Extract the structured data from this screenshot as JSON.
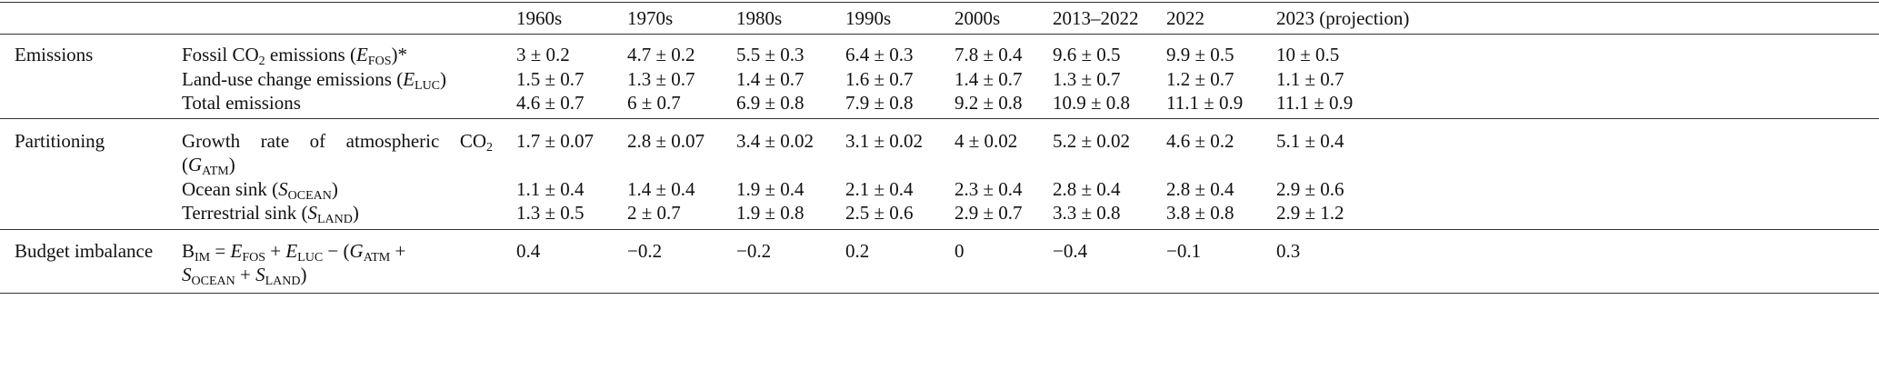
{
  "columns": [
    "1960s",
    "1970s",
    "1980s",
    "1990s",
    "2000s",
    "2013–2022",
    "2022",
    "2023 (projection)"
  ],
  "sections": [
    {
      "name": "Emissions",
      "rows": [
        {
          "label": [
            "Fossil CO",
            "2",
            " emissions (",
            "E",
            "FOS",
            ")*"
          ],
          "values": [
            "3 ± 0.2",
            "4.7 ± 0.2",
            "5.5 ± 0.3",
            "6.4 ± 0.3",
            "7.8 ± 0.4",
            "9.6 ± 0.5",
            "9.9 ± 0.5",
            "10 ± 0.5"
          ]
        },
        {
          "label": [
            "Land-use change emissions (",
            "E",
            "LUC",
            ")"
          ],
          "values": [
            "1.5 ± 0.7",
            "1.3 ± 0.7",
            "1.4 ± 0.7",
            "1.6 ± 0.7",
            "1.4 ± 0.7",
            "1.3 ± 0.7",
            "1.2 ± 0.7",
            "1.1 ± 0.7"
          ]
        },
        {
          "label": [
            "Total emissions"
          ],
          "values": [
            "4.6 ± 0.7",
            "6 ± 0.7",
            "6.9 ± 0.8",
            "7.9 ± 0.8",
            "9.2 ± 0.8",
            "10.9 ± 0.8",
            "11.1 ± 0.9",
            "11.1 ± 0.9"
          ]
        }
      ]
    },
    {
      "name": "Partitioning",
      "rows": [
        {
          "label": [
            "Growth rate of atmospheric CO",
            "2",
            "(",
            "G",
            "ATM",
            ")"
          ],
          "values": [
            "1.7 ± 0.07",
            "2.8 ± 0.07",
            "3.4 ± 0.02",
            "3.1 ± 0.02",
            "4 ± 0.02",
            "5.2 ± 0.02",
            "4.6 ± 0.2",
            "5.1 ± 0.4"
          ]
        },
        {
          "label": [
            "Ocean sink (",
            "S",
            "OCEAN",
            ")"
          ],
          "values": [
            "1.1 ± 0.4",
            "1.4 ± 0.4",
            "1.9 ± 0.4",
            "2.1 ± 0.4",
            "2.3 ± 0.4",
            "2.8 ± 0.4",
            "2.8 ± 0.4",
            "2.9 ± 0.6"
          ]
        },
        {
          "label": [
            "Terrestrial sink (",
            "S",
            "LAND",
            ")"
          ],
          "values": [
            "1.3 ± 0.5",
            "2 ± 0.7",
            "1.9 ± 0.8",
            "2.5 ± 0.6",
            "2.9 ± 0.7",
            "3.3 ± 0.8",
            "3.8 ± 0.8",
            "2.9 ± 1.2"
          ]
        }
      ]
    },
    {
      "name": "Budget imbalance",
      "rows": [
        {
          "label": [
            "B",
            "IM",
            " = ",
            "E",
            "FOS",
            " + ",
            "E",
            "LUC",
            " − (",
            "G",
            "ATM",
            " +",
            "S",
            "OCEAN",
            " + ",
            "S",
            "LAND",
            ")"
          ],
          "values": [
            "0.4",
            "−0.2",
            "−0.2",
            "0.2",
            "0",
            "−0.4",
            "−0.1",
            "0.3"
          ]
        }
      ]
    }
  ]
}
